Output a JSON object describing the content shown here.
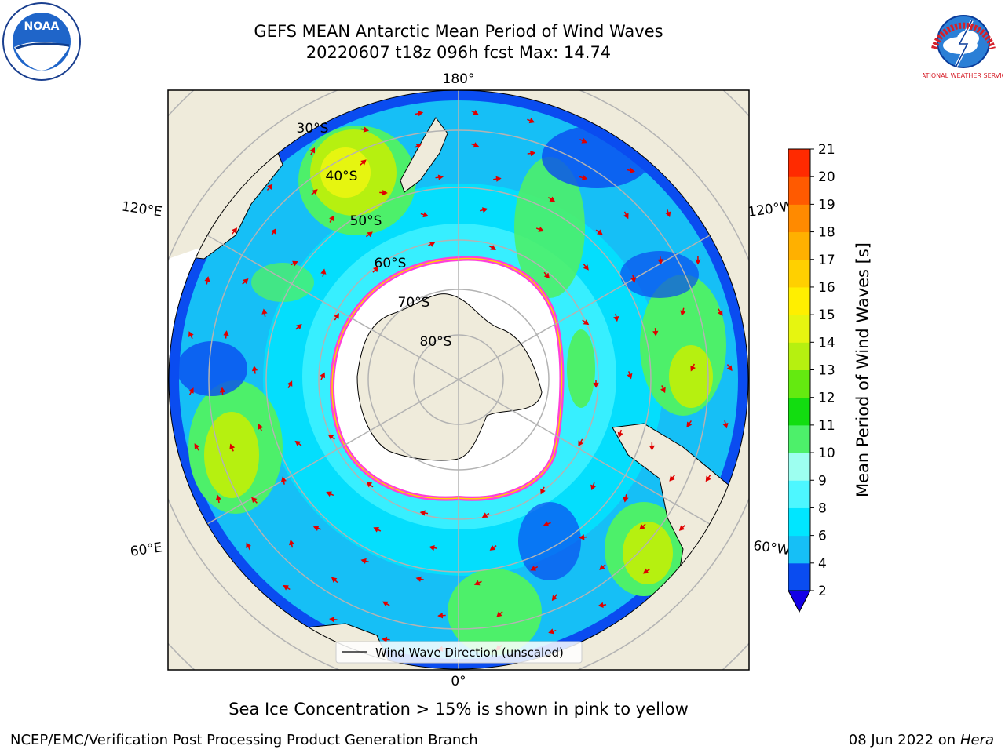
{
  "header": {
    "title_line1": "GEFS MEAN Antarctic Mean Period of Wind Waves",
    "title_line2": "20220607 t18z 096h fcst   Max: 14.74"
  },
  "map": {
    "lon_labels": [
      {
        "text": "180°",
        "angle": 180
      },
      {
        "text": "120°E",
        "angle": 120
      },
      {
        "text": "120°W",
        "angle": -120
      },
      {
        "text": "60°E",
        "angle": 60
      },
      {
        "text": "60°W",
        "angle": -60
      },
      {
        "text": "0°",
        "angle": 0
      }
    ],
    "lat_labels": [
      "30°S",
      "40°S",
      "50°S",
      "60°S",
      "70°S",
      "80°S"
    ],
    "legend_label": "Wind Wave Direction (unscaled)"
  },
  "colorbar": {
    "label": "Mean Period of Wind Waves [s]",
    "ticks": [
      "2",
      "4",
      "6",
      "8",
      "9",
      "10",
      "11",
      "12",
      "13",
      "14",
      "15",
      "16",
      "17",
      "18",
      "19",
      "20",
      "21"
    ],
    "colors": [
      "#0a4cf0",
      "#16bff6",
      "#00e6ff",
      "#4df7ff",
      "#9dfff0",
      "#4df06a",
      "#12dd10",
      "#64ea10",
      "#b6f010",
      "#e6f510",
      "#ffef00",
      "#ffd000",
      "#ffb000",
      "#ff8a00",
      "#ff5a00",
      "#ff2a00"
    ],
    "under_color": "#1400e6"
  },
  "footer": {
    "note": "Sea Ice Concentration > 15% is shown in pink to yellow",
    "credit": "NCEP/EMC/Verification Post Processing Product Generation Branch",
    "date": "08 Jun 2022 on",
    "machine": "Hera"
  },
  "logos": {
    "left_icon": "noaa-logo",
    "left_text": "NOAA",
    "right_icon": "nws-logo",
    "right_text": "NATIONAL WEATHER SERVICE"
  }
}
